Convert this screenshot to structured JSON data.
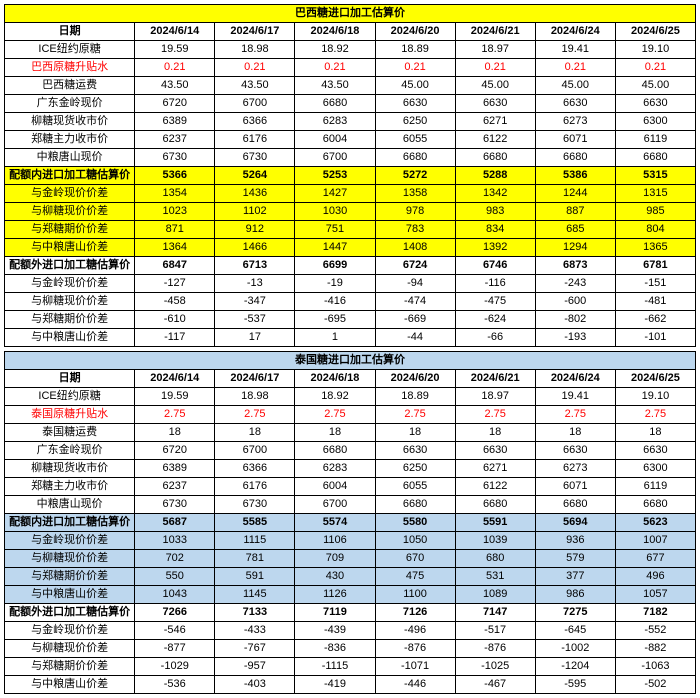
{
  "dates": [
    "2024/6/14",
    "2024/6/17",
    "2024/6/18",
    "2024/6/20",
    "2024/6/21",
    "2024/6/24",
    "2024/6/25"
  ],
  "section1": {
    "title": "巴西糖进口加工估算价",
    "dateLabel": "日期",
    "rows": [
      {
        "label": "ICE纽约原糖",
        "v": [
          "19.59",
          "18.98",
          "18.92",
          "18.89",
          "18.97",
          "19.41",
          "19.10"
        ],
        "style": "plain"
      },
      {
        "label": "巴西原糖升贴水",
        "v": [
          "0.21",
          "0.21",
          "0.21",
          "0.21",
          "0.21",
          "0.21",
          "0.21"
        ],
        "style": "red"
      },
      {
        "label": "巴西糖运费",
        "v": [
          "43.50",
          "43.50",
          "43.50",
          "45.00",
          "45.00",
          "45.00",
          "45.00"
        ],
        "style": "plain"
      },
      {
        "label": "广东金岭现价",
        "v": [
          "6720",
          "6700",
          "6680",
          "6630",
          "6630",
          "6630",
          "6630"
        ],
        "style": "plain"
      },
      {
        "label": "柳糖现货收市价",
        "v": [
          "6389",
          "6366",
          "6283",
          "6250",
          "6271",
          "6273",
          "6300"
        ],
        "style": "plain"
      },
      {
        "label": "郑糖主力收市价",
        "v": [
          "6237",
          "6176",
          "6004",
          "6055",
          "6122",
          "6071",
          "6119"
        ],
        "style": "plain"
      },
      {
        "label": "中粮唐山现价",
        "v": [
          "6730",
          "6730",
          "6700",
          "6680",
          "6680",
          "6680",
          "6680"
        ],
        "style": "plain"
      },
      {
        "label": "配额内进口加工糖估算价",
        "v": [
          "5366",
          "5264",
          "5253",
          "5272",
          "5288",
          "5386",
          "5315"
        ],
        "style": "yellow-bold"
      },
      {
        "label": "与金岭现价价差",
        "v": [
          "1354",
          "1436",
          "1427",
          "1358",
          "1342",
          "1244",
          "1315"
        ],
        "style": "yellow"
      },
      {
        "label": "与柳糖现价价差",
        "v": [
          "1023",
          "1102",
          "1030",
          "978",
          "983",
          "887",
          "985"
        ],
        "style": "yellow"
      },
      {
        "label": "与郑糖期价价差",
        "v": [
          "871",
          "912",
          "751",
          "783",
          "834",
          "685",
          "804"
        ],
        "style": "yellow"
      },
      {
        "label": "与中粮唐山价差",
        "v": [
          "1364",
          "1466",
          "1447",
          "1408",
          "1392",
          "1294",
          "1365"
        ],
        "style": "yellow"
      },
      {
        "label": "配额外进口加工糖估算价",
        "v": [
          "6847",
          "6713",
          "6699",
          "6724",
          "6746",
          "6873",
          "6781"
        ],
        "style": "bold"
      },
      {
        "label": "与金岭现价价差",
        "v": [
          "-127",
          "-13",
          "-19",
          "-94",
          "-116",
          "-243",
          "-151"
        ],
        "style": "plain"
      },
      {
        "label": "与柳糖现价价差",
        "v": [
          "-458",
          "-347",
          "-416",
          "-474",
          "-475",
          "-600",
          "-481"
        ],
        "style": "plain"
      },
      {
        "label": "与郑糖期价价差",
        "v": [
          "-610",
          "-537",
          "-695",
          "-669",
          "-624",
          "-802",
          "-662"
        ],
        "style": "plain"
      },
      {
        "label": "与中粮唐山价差",
        "v": [
          "-117",
          "17",
          "1",
          "-44",
          "-66",
          "-193",
          "-101"
        ],
        "style": "plain"
      }
    ]
  },
  "section2": {
    "title": "泰国糖进口加工估算价",
    "dateLabel": "日期",
    "rows": [
      {
        "label": "ICE纽约原糖",
        "v": [
          "19.59",
          "18.98",
          "18.92",
          "18.89",
          "18.97",
          "19.41",
          "19.10"
        ],
        "style": "plain"
      },
      {
        "label": "泰国原糖升贴水",
        "v": [
          "2.75",
          "2.75",
          "2.75",
          "2.75",
          "2.75",
          "2.75",
          "2.75"
        ],
        "style": "red"
      },
      {
        "label": "泰国糖运费",
        "v": [
          "18",
          "18",
          "18",
          "18",
          "18",
          "18",
          "18"
        ],
        "style": "plain"
      },
      {
        "label": "广东金岭现价",
        "v": [
          "6720",
          "6700",
          "6680",
          "6630",
          "6630",
          "6630",
          "6630"
        ],
        "style": "plain"
      },
      {
        "label": "柳糖现货收市价",
        "v": [
          "6389",
          "6366",
          "6283",
          "6250",
          "6271",
          "6273",
          "6300"
        ],
        "style": "plain"
      },
      {
        "label": "郑糖主力收市价",
        "v": [
          "6237",
          "6176",
          "6004",
          "6055",
          "6122",
          "6071",
          "6119"
        ],
        "style": "plain"
      },
      {
        "label": "中粮唐山现价",
        "v": [
          "6730",
          "6730",
          "6700",
          "6680",
          "6680",
          "6680",
          "6680"
        ],
        "style": "plain"
      },
      {
        "label": "配额内进口加工糖估算价",
        "v": [
          "5687",
          "5585",
          "5574",
          "5580",
          "5591",
          "5694",
          "5623"
        ],
        "style": "blue-bold"
      },
      {
        "label": "与金岭现价价差",
        "v": [
          "1033",
          "1115",
          "1106",
          "1050",
          "1039",
          "936",
          "1007"
        ],
        "style": "blue"
      },
      {
        "label": "与柳糖现价价差",
        "v": [
          "702",
          "781",
          "709",
          "670",
          "680",
          "579",
          "677"
        ],
        "style": "blue"
      },
      {
        "label": "与郑糖期价价差",
        "v": [
          "550",
          "591",
          "430",
          "475",
          "531",
          "377",
          "496"
        ],
        "style": "blue"
      },
      {
        "label": "与中粮唐山价差",
        "v": [
          "1043",
          "1145",
          "1126",
          "1100",
          "1089",
          "986",
          "1057"
        ],
        "style": "blue"
      },
      {
        "label": "配额外进口加工糖估算价",
        "v": [
          "7266",
          "7133",
          "7119",
          "7126",
          "7147",
          "7275",
          "7182"
        ],
        "style": "bold"
      },
      {
        "label": "与金岭现价价差",
        "v": [
          "-546",
          "-433",
          "-439",
          "-496",
          "-517",
          "-645",
          "-552"
        ],
        "style": "plain"
      },
      {
        "label": "与柳糖现价价差",
        "v": [
          "-877",
          "-767",
          "-836",
          "-876",
          "-876",
          "-1002",
          "-882"
        ],
        "style": "plain"
      },
      {
        "label": "与郑糖期价价差",
        "v": [
          "-1029",
          "-957",
          "-1115",
          "-1071",
          "-1025",
          "-1204",
          "-1063"
        ],
        "style": "plain"
      },
      {
        "label": "与中粮唐山价差",
        "v": [
          "-536",
          "-403",
          "-419",
          "-446",
          "-467",
          "-595",
          "-502"
        ],
        "style": "plain"
      }
    ]
  }
}
